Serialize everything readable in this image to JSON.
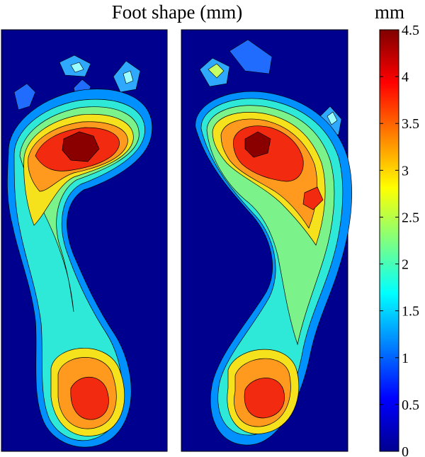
{
  "chart_data": {
    "type": "heatmap",
    "title": "Foot shape (mm)",
    "colorbar": {
      "label": "mm",
      "min": 0,
      "max": 4.5,
      "ticks": [
        0,
        0.5,
        1,
        1.5,
        2,
        2.5,
        3,
        3.5,
        4,
        4.5
      ],
      "tick_labels": [
        "0",
        "0.5",
        "1",
        "1.5",
        "2",
        "2.5",
        "3",
        "3.5",
        "4",
        "4.5"
      ],
      "colormap": "jet"
    },
    "panels": [
      {
        "name": "left-foot",
        "regions": [
          {
            "area": "forefoot",
            "max_height_mm": 4.5
          },
          {
            "area": "heel",
            "max_height_mm": 4.0
          },
          {
            "area": "midfoot-lateral",
            "max_height_mm": 2.5
          },
          {
            "area": "toes",
            "max_height_mm": 1.5
          }
        ]
      },
      {
        "name": "right-foot",
        "regions": [
          {
            "area": "forefoot",
            "max_height_mm": 4.5
          },
          {
            "area": "heel",
            "max_height_mm": 4.0
          },
          {
            "area": "midfoot-lateral",
            "max_height_mm": 3.0
          },
          {
            "area": "toes",
            "max_height_mm": 2.0
          }
        ]
      }
    ]
  }
}
